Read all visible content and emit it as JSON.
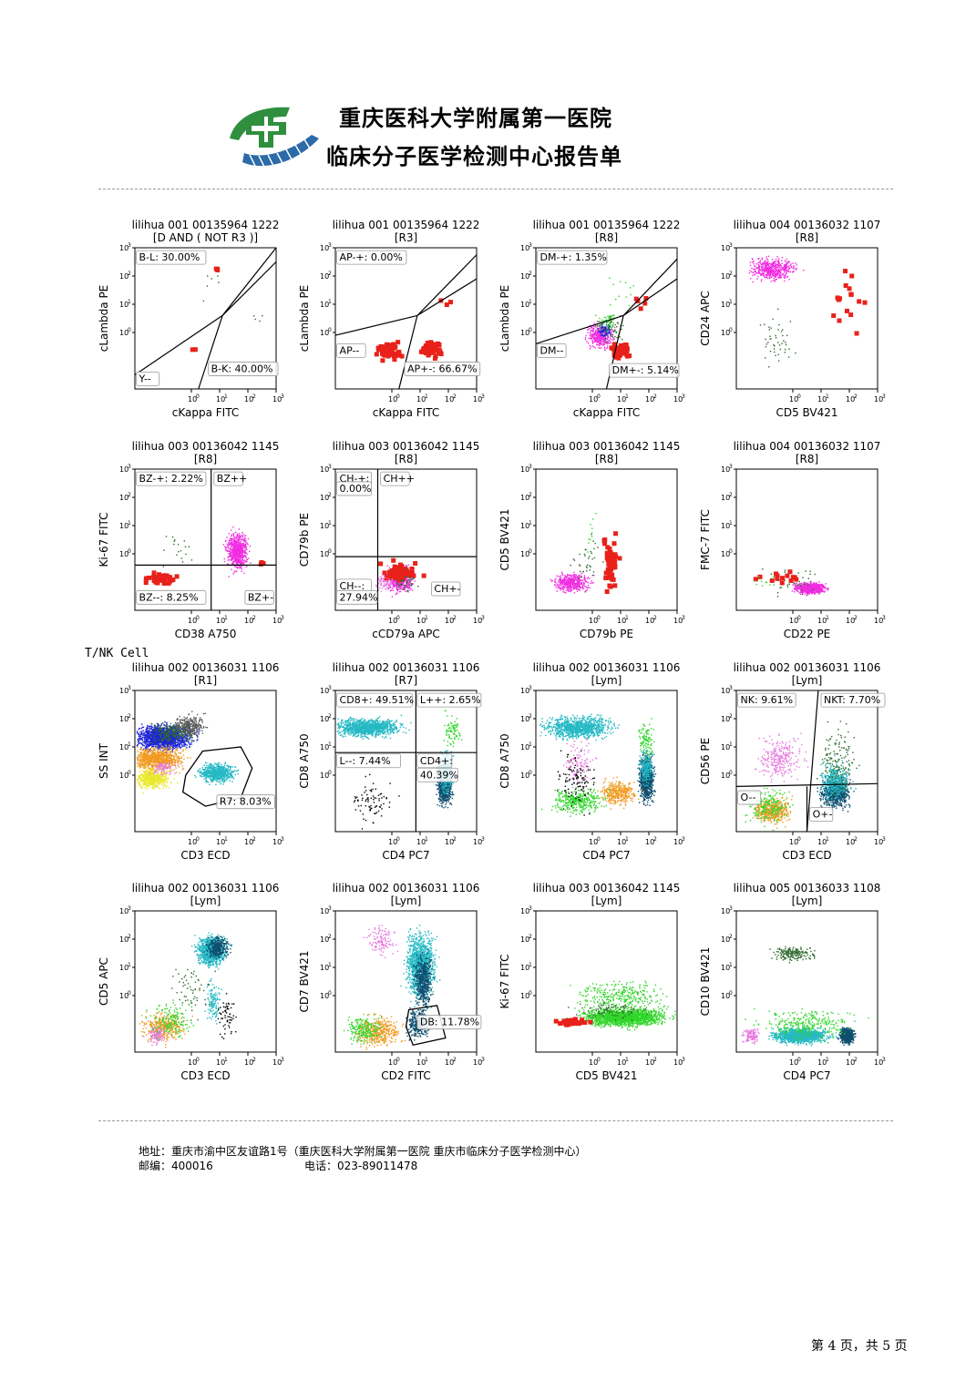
{
  "header": {
    "hospital_name": "重庆医科大学附属第一医院",
    "report_title": "临床分子医学检测中心报告单",
    "logo_icon": "hospital-cross-logo-icon",
    "logo_colors": {
      "green": "#2f8f3f",
      "blue": "#2c6aa8"
    }
  },
  "section_label": "T/NK Cell",
  "colors": {
    "red": "#e8211a",
    "magenta": "#f02ce0",
    "green": "#31d62a",
    "darkgreen": "#2e6b2e",
    "teal": "#25b9c4",
    "navy": "#0f4e6e",
    "orange": "#f09a20",
    "blue": "#1e24d8",
    "gray": "#5a5a5a",
    "yellow": "#e8e82a",
    "black": "#000000",
    "pink": "#e87ae0"
  },
  "plots": [
    {
      "title": "lilihua 001 00135964 1222",
      "subtitle": "[D AND ( NOT R3 )]",
      "xlabel": "cKappa FITC",
      "ylabel": "cLambda PE",
      "gates": [
        {
          "text": "B-L: 30.00%"
        },
        {
          "text": "Y--"
        },
        {
          "text": "B-K: 40.00%"
        }
      ]
    },
    {
      "title": "lilihua 001 00135964 1222",
      "subtitle": "[R3]",
      "xlabel": "cKappa FITC",
      "ylabel": "cLambda PE",
      "gates": [
        {
          "text": "AP-+: 0.00%"
        },
        {
          "text": "AP--"
        },
        {
          "text": "AP+-: 66.67%"
        }
      ]
    },
    {
      "title": "lilihua 001 00135964 1222",
      "subtitle": "[R8]",
      "xlabel": "cKappa FITC",
      "ylabel": "cLambda PE",
      "gates": [
        {
          "text": "DM-+: 1.35%"
        },
        {
          "text": "DM--"
        },
        {
          "text": "DM+-: 5.14%"
        }
      ]
    },
    {
      "title": "lilihua 004 00136032 1107",
      "subtitle": "[R8]",
      "xlabel": "CD5 BV421",
      "ylabel": "CD24 APC",
      "gates": []
    },
    {
      "title": "lilihua 003 00136042 1145",
      "subtitle": "[R8]",
      "xlabel": "CD38 A750",
      "ylabel": "Ki-67 FITC",
      "gates": [
        {
          "text": "BZ-+: 2.22%"
        },
        {
          "text": "BZ++"
        },
        {
          "text": "BZ--: 8.25%"
        },
        {
          "text": "BZ+-"
        }
      ]
    },
    {
      "title": "lilihua 003 00136042 1145",
      "subtitle": "[R8]",
      "xlabel": "cCD79a APC",
      "ylabel": "CD79b PE",
      "gates": [
        {
          "text": "CH-+:"
        },
        {
          "text": "0.00%"
        },
        {
          "text": "CH++"
        },
        {
          "text": "CH--:"
        },
        {
          "text": "27.94%"
        },
        {
          "text": "CH+-"
        }
      ]
    },
    {
      "title": "lilihua 003 00136042 1145",
      "subtitle": "[R8]",
      "xlabel": "CD79b PE",
      "ylabel": "CD5 BV421",
      "gates": []
    },
    {
      "title": "lilihua 004 00136032 1107",
      "subtitle": "[R8]",
      "xlabel": "CD22 PE",
      "ylabel": "FMC-7 FITC",
      "gates": []
    },
    {
      "title": "lilihua 002 00136031 1106",
      "subtitle": "[R1]",
      "xlabel": "CD3 ECD",
      "ylabel": "SS INT",
      "gates": [
        {
          "text": "R7: 8.03%"
        }
      ]
    },
    {
      "title": "lilihua 002 00136031 1106",
      "subtitle": "[R7]",
      "xlabel": "CD4 PC7",
      "ylabel": "CD8 A750",
      "gates": [
        {
          "text": "CD8+: 49.51%"
        },
        {
          "text": "L++: 2.65%"
        },
        {
          "text": "L--: 7.44%"
        },
        {
          "text": "CD4+:"
        },
        {
          "text": "40.39%"
        }
      ]
    },
    {
      "title": "lilihua 002 00136031 1106",
      "subtitle": "[Lym]",
      "xlabel": "CD4 PC7",
      "ylabel": "CD8 A750",
      "gates": []
    },
    {
      "title": "lilihua 002 00136031 1106",
      "subtitle": "[Lym]",
      "xlabel": "CD3 ECD",
      "ylabel": "CD56 PE",
      "gates": [
        {
          "text": "NK: 9.61%"
        },
        {
          "text": "NKT: 7.70%"
        },
        {
          "text": "O--"
        },
        {
          "text": "O+-"
        }
      ]
    },
    {
      "title": "lilihua 002 00136031 1106",
      "subtitle": "[Lym]",
      "xlabel": "CD3 ECD",
      "ylabel": "CD5 APC",
      "gates": []
    },
    {
      "title": "lilihua 002 00136031 1106",
      "subtitle": "[Lym]",
      "xlabel": "CD2 FITC",
      "ylabel": "CD7 BV421",
      "gates": [
        {
          "text": "DB: 11.78%"
        }
      ]
    },
    {
      "title": "lilihua 003 00136042 1145",
      "subtitle": "[Lym]",
      "xlabel": "CD5 BV421",
      "ylabel": "Ki-67 FITC",
      "gates": []
    },
    {
      "title": "lilihua 005 00136033 1108",
      "subtitle": "[Lym]",
      "xlabel": "CD4 PC7",
      "ylabel": "CD10 BV421",
      "gates": []
    }
  ],
  "footer": {
    "address": "地址：重庆市渝中区友谊路1号（重庆医科大学附属第一医院 重庆市临床分子医学检测中心）",
    "postcode": "邮编：400016",
    "phone": "电话：023-89011478"
  },
  "page_number": "第 4 页，共 5 页"
}
